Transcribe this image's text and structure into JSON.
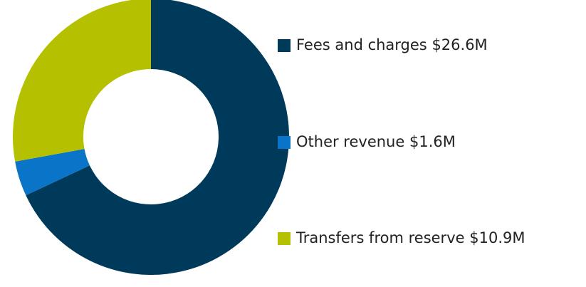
{
  "chart_data": {
    "type": "donut",
    "categories": [
      "Fees and charges",
      "Other revenue",
      "Transfers from reserve"
    ],
    "values": [
      26.6,
      1.6,
      10.9
    ],
    "value_labels": [
      "$26.6M",
      "$1.6M",
      "$10.9M"
    ],
    "colors": [
      "#003a5a",
      "#0a74c9",
      "#b5c000"
    ],
    "legend": "right"
  }
}
